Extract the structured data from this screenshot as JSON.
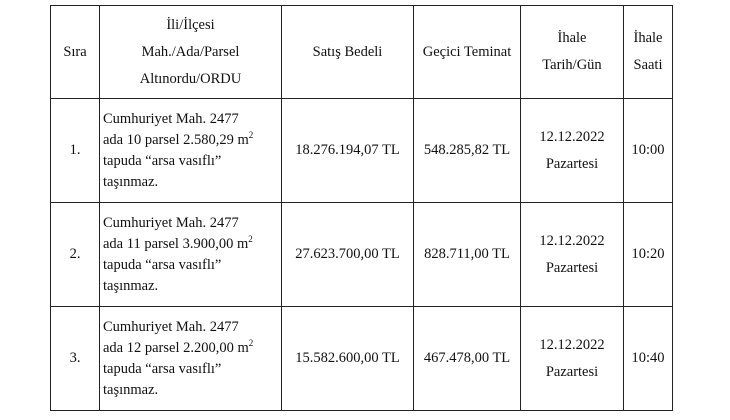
{
  "headers": {
    "sira": "Sıra",
    "location": [
      "İli/İlçesi",
      "Mah./Ada/Parsel",
      "Altınordu/ORDU"
    ],
    "price": "Satış Bedeli",
    "deposit": "Geçici Teminat",
    "date": [
      "İhale",
      "Tarih/Gün"
    ],
    "time": [
      "İhale",
      "Saati"
    ]
  },
  "rows": [
    {
      "no": "1.",
      "desc": [
        "Cumhuriyet Mah. 2477",
        "ada 10 parsel 2.580,29 m",
        "tapuda “arsa vasıflı”",
        "taşınmaz."
      ],
      "unit_sup": "2",
      "price": "18.276.194,07 TL",
      "deposit": "548.285,82 TL",
      "date": "12.12.2022",
      "day": "Pazartesi",
      "time": "10:00"
    },
    {
      "no": "2.",
      "desc": [
        "Cumhuriyet Mah. 2477",
        "ada 11 parsel 3.900,00 m",
        "tapuda “arsa vasıflı”",
        "taşınmaz."
      ],
      "unit_sup": "2",
      "price": "27.623.700,00 TL",
      "deposit": "828.711,00 TL",
      "date": "12.12.2022",
      "day": "Pazartesi",
      "time": "10:20"
    },
    {
      "no": "3.",
      "desc": [
        "Cumhuriyet Mah. 2477",
        "ada 12 parsel 2.200,00 m",
        "tapuda “arsa vasıflı”",
        "taşınmaz."
      ],
      "unit_sup": "2",
      "price": "15.582.600,00 TL",
      "deposit": "467.478,00 TL",
      "date": "12.12.2022",
      "day": "Pazartesi",
      "time": "10:40"
    }
  ]
}
